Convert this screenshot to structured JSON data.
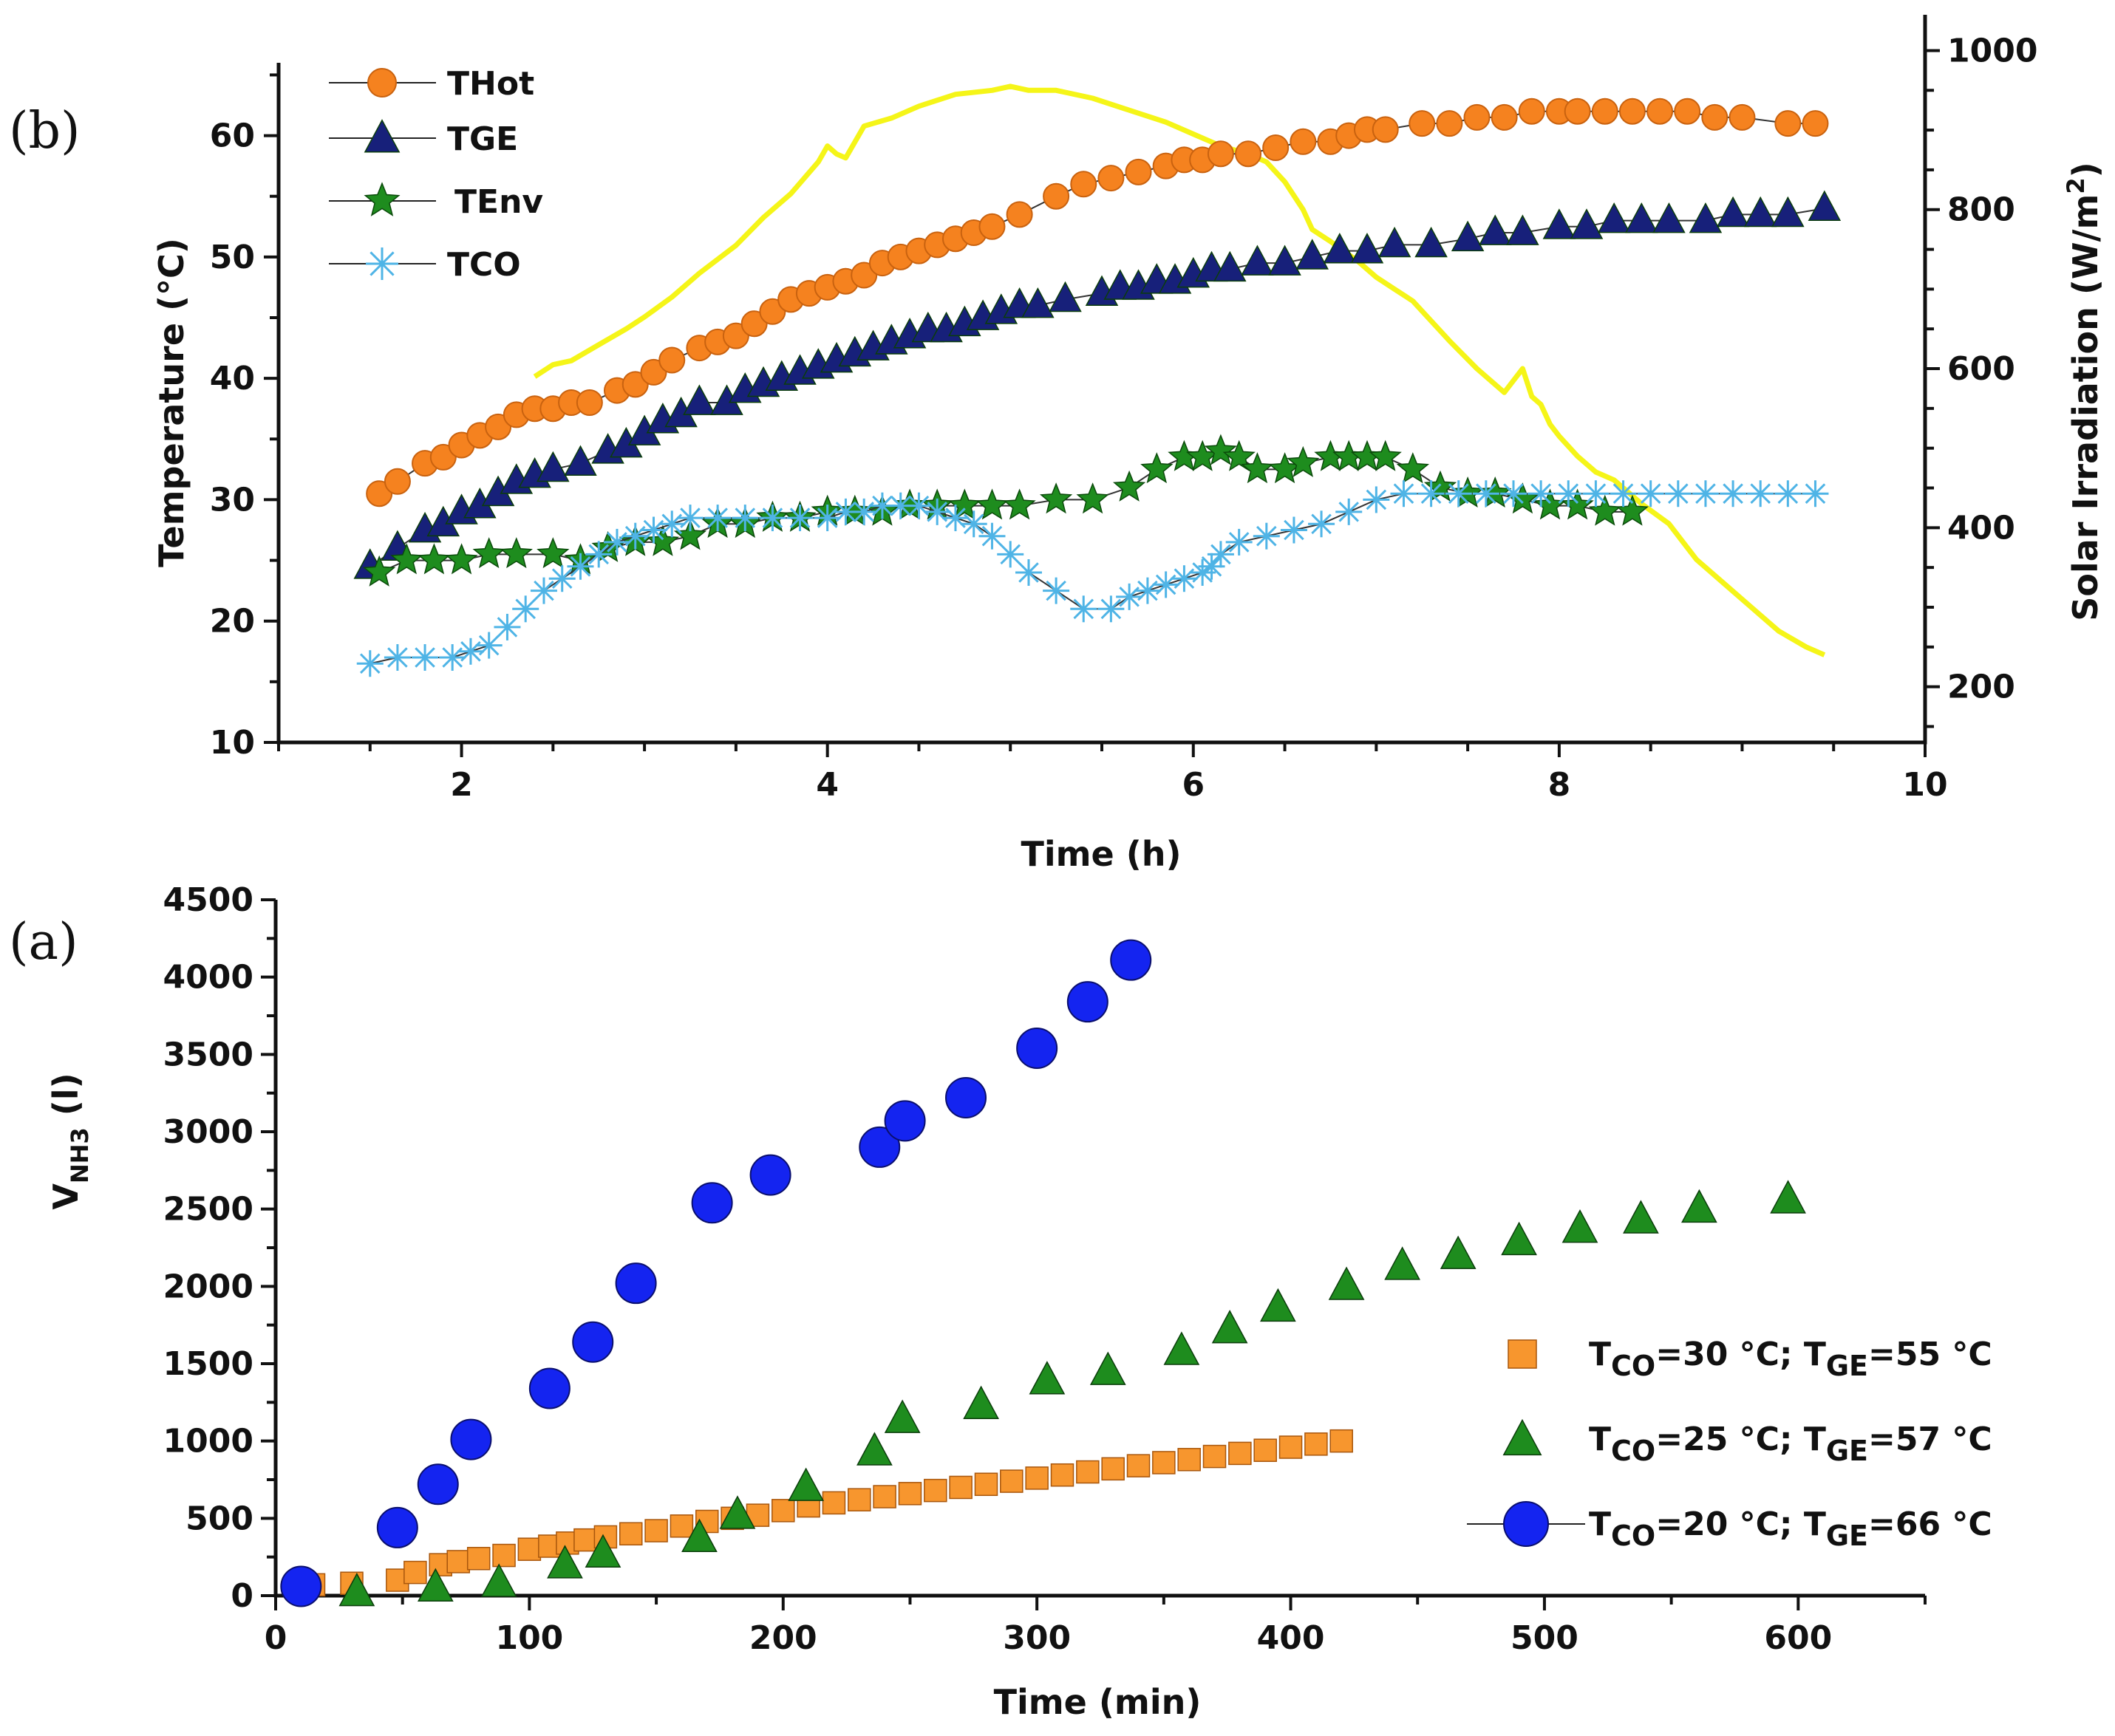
{
  "colors": {
    "orange": "#F5821F",
    "navy": "#17207A",
    "green": "#1E8C1E",
    "lightblue": "#4FB4E6",
    "yellow": "#F5F518",
    "blue": "#1424F0",
    "sq_orange": "#F7962E",
    "tri_green": "#1E8C1E"
  },
  "chart_data": [
    {
      "id": "b",
      "panel_label": "(b)",
      "type": "line",
      "xlabel": "Time (h)",
      "ylabel": "Temperature (°C)",
      "y2label_parts": {
        "main": "Solar Irradiation (W/m",
        "sup": "2",
        "close": ")"
      },
      "xlim": [
        1,
        10
      ],
      "ylim": [
        10,
        66
      ],
      "y2lim": [
        130,
        1045
      ],
      "xticks": [
        2,
        4,
        6,
        8,
        10
      ],
      "yticks": [
        10,
        20,
        30,
        40,
        50,
        60
      ],
      "y2ticks": [
        200,
        400,
        600,
        800,
        1000
      ],
      "legend": [
        {
          "label": "THot",
          "series": "THot"
        },
        {
          "label": "TGE",
          "series": "TGE"
        },
        {
          "label": "TEnv",
          "series": "TEnv"
        },
        {
          "label": "TCO",
          "series": "TCO"
        }
      ],
      "series": [
        {
          "name": "THot",
          "marker": "circle",
          "x": [
            1.55,
            1.65,
            1.8,
            1.9,
            2.0,
            2.1,
            2.2,
            2.3,
            2.4,
            2.5,
            2.6,
            2.7,
            2.85,
            2.95,
            3.05,
            3.15,
            3.3,
            3.4,
            3.5,
            3.6,
            3.7,
            3.8,
            3.9,
            4.0,
            4.1,
            4.2,
            4.3,
            4.4,
            4.5,
            4.6,
            4.7,
            4.8,
            4.9,
            5.05,
            5.25,
            5.4,
            5.55,
            5.7,
            5.85,
            5.95,
            6.05,
            6.15,
            6.3,
            6.45,
            6.6,
            6.75,
            6.85,
            6.95,
            7.05,
            7.25,
            7.4,
            7.55,
            7.7,
            7.85,
            8.0,
            8.1,
            8.25,
            8.4,
            8.55,
            8.7,
            8.85,
            9.0,
            9.25,
            9.4
          ],
          "y": [
            30.5,
            31.5,
            33,
            33.5,
            34.5,
            35.3,
            36,
            37,
            37.5,
            37.5,
            38,
            38,
            39,
            39.5,
            40.5,
            41.5,
            42.5,
            43,
            43.5,
            44.5,
            45.5,
            46.5,
            47,
            47.5,
            48,
            48.5,
            49.5,
            50,
            50.5,
            51,
            51.5,
            52,
            52.5,
            53.5,
            55,
            56,
            56.5,
            57,
            57.5,
            58,
            58,
            58.5,
            58.5,
            59,
            59.5,
            59.5,
            60,
            60.5,
            60.5,
            61,
            61,
            61.5,
            61.5,
            62,
            62,
            62,
            62,
            62,
            62,
            62,
            61.5,
            61.5,
            61,
            61
          ]
        },
        {
          "name": "TGE",
          "marker": "triangle",
          "x": [
            1.5,
            1.65,
            1.8,
            1.9,
            2.0,
            2.1,
            2.2,
            2.3,
            2.4,
            2.5,
            2.65,
            2.8,
            2.9,
            3.0,
            3.1,
            3.2,
            3.3,
            3.45,
            3.55,
            3.65,
            3.75,
            3.85,
            3.95,
            4.05,
            4.15,
            4.25,
            4.35,
            4.45,
            4.55,
            4.65,
            4.75,
            4.85,
            4.95,
            5.05,
            5.15,
            5.3,
            5.5,
            5.6,
            5.7,
            5.8,
            5.9,
            6.0,
            6.1,
            6.2,
            6.35,
            6.5,
            6.65,
            6.8,
            6.95,
            7.1,
            7.3,
            7.5,
            7.65,
            7.8,
            8.0,
            8.15,
            8.3,
            8.45,
            8.6,
            8.8,
            8.95,
            9.1,
            9.25,
            9.45
          ],
          "y": [
            24.5,
            26,
            27.5,
            28,
            29,
            29.5,
            30.5,
            31.5,
            32,
            32.5,
            33,
            34,
            34.5,
            35.5,
            36.5,
            37,
            38,
            38,
            39,
            39.5,
            40,
            40.5,
            41,
            41.5,
            42,
            42.5,
            43,
            43.5,
            44,
            44,
            44.5,
            45,
            45.5,
            46,
            46,
            46.5,
            47,
            47.5,
            47.5,
            48,
            48,
            48.5,
            49,
            49,
            49.5,
            49.5,
            50,
            50.5,
            50.5,
            51,
            51,
            51.5,
            52,
            52,
            52.5,
            52.5,
            53,
            53,
            53,
            53,
            53.5,
            53.5,
            53.5,
            54
          ]
        },
        {
          "name": "TEnv",
          "marker": "star",
          "x": [
            1.55,
            1.7,
            1.85,
            2.0,
            2.15,
            2.3,
            2.5,
            2.65,
            2.8,
            2.95,
            3.1,
            3.25,
            3.4,
            3.55,
            3.7,
            3.85,
            4.0,
            4.15,
            4.3,
            4.45,
            4.6,
            4.75,
            4.9,
            5.05,
            5.25,
            5.45,
            5.65,
            5.8,
            5.95,
            6.05,
            6.15,
            6.25,
            6.35,
            6.5,
            6.6,
            6.75,
            6.85,
            6.95,
            7.05,
            7.2,
            7.35,
            7.5,
            7.65,
            7.8,
            7.95,
            8.1,
            8.25,
            8.4
          ],
          "y": [
            24,
            25,
            25,
            25,
            25.5,
            25.5,
            25.5,
            25,
            26,
            26.5,
            26.5,
            27,
            28,
            28,
            28.5,
            28.5,
            29,
            29,
            29,
            29.5,
            29.5,
            29.5,
            29.5,
            29.5,
            30,
            30,
            31,
            32.5,
            33.5,
            33.5,
            34,
            33.5,
            32.5,
            32.5,
            33,
            33.5,
            33.5,
            33.5,
            33.5,
            32.5,
            31,
            30.5,
            30.5,
            30,
            29.5,
            29.5,
            29,
            29
          ]
        },
        {
          "name": "TCO",
          "marker": "asterisk",
          "x": [
            1.5,
            1.65,
            1.8,
            1.95,
            2.05,
            2.15,
            2.25,
            2.35,
            2.45,
            2.55,
            2.65,
            2.75,
            2.85,
            2.95,
            3.05,
            3.15,
            3.25,
            3.4,
            3.55,
            3.7,
            3.85,
            4.0,
            4.1,
            4.2,
            4.3,
            4.4,
            4.5,
            4.6,
            4.7,
            4.8,
            4.9,
            5.0,
            5.1,
            5.25,
            5.4,
            5.55,
            5.65,
            5.75,
            5.85,
            5.95,
            6.05,
            6.1,
            6.15,
            6.25,
            6.4,
            6.55,
            6.7,
            6.85,
            7.0,
            7.15,
            7.3,
            7.45,
            7.6,
            7.75,
            7.9,
            8.05,
            8.2,
            8.35,
            8.5,
            8.65,
            8.8,
            8.95,
            9.1,
            9.25,
            9.4
          ],
          "y": [
            16.5,
            17,
            17,
            17,
            17.5,
            18,
            19.5,
            21,
            22.5,
            23.5,
            24.5,
            25.5,
            26.5,
            27,
            27.5,
            28,
            28.5,
            28.5,
            28.5,
            28.5,
            28.5,
            28.5,
            29,
            29,
            29.5,
            29.5,
            29.5,
            29,
            28.5,
            28,
            27,
            25.5,
            24,
            22.5,
            21,
            21,
            22,
            22.5,
            23,
            23.5,
            24,
            24.5,
            25.5,
            26.5,
            27,
            27.5,
            28,
            29,
            30,
            30.5,
            30.5,
            30.5,
            30.5,
            30.5,
            30.5,
            30.5,
            30.5,
            30.5,
            30.5,
            30.5,
            30.5,
            30.5,
            30.5,
            30.5,
            30.5
          ]
        },
        {
          "name": "Solar Irradiation",
          "marker": "none",
          "axis": "right",
          "x": [
            2.4,
            2.5,
            2.6,
            2.75,
            2.9,
            3.0,
            3.15,
            3.3,
            3.5,
            3.65,
            3.8,
            3.95,
            4.0,
            4.05,
            4.1,
            4.2,
            4.35,
            4.5,
            4.7,
            4.9,
            5.0,
            5.1,
            5.25,
            5.45,
            5.65,
            5.85,
            6.0,
            6.15,
            6.3,
            6.4,
            6.5,
            6.6,
            6.65,
            6.75,
            6.9,
            7.0,
            7.1,
            7.2,
            7.4,
            7.55,
            7.7,
            7.8,
            7.85,
            7.9,
            7.95,
            8.0,
            8.1,
            8.2,
            8.3,
            8.45,
            8.6,
            8.75,
            8.9,
            9.05,
            9.2,
            9.35,
            9.45
          ],
          "y": [
            590,
            605,
            610,
            630,
            650,
            665,
            690,
            720,
            755,
            790,
            820,
            860,
            880,
            870,
            865,
            905,
            915,
            930,
            945,
            950,
            955,
            950,
            950,
            940,
            925,
            910,
            895,
            880,
            870,
            860,
            835,
            800,
            775,
            760,
            735,
            715,
            700,
            685,
            635,
            600,
            570,
            600,
            565,
            555,
            530,
            515,
            490,
            470,
            460,
            430,
            405,
            360,
            330,
            300,
            270,
            250,
            240
          ]
        }
      ]
    },
    {
      "id": "a",
      "panel_label": "(a)",
      "type": "scatter",
      "xlabel": "Time (min)",
      "ylabel_parts": {
        "main": "V",
        "sub": "NH3",
        "close": " (l)"
      },
      "xlim": [
        0,
        650
      ],
      "ylim": [
        0,
        4500
      ],
      "xticks": [
        0,
        100,
        200,
        300,
        400,
        500,
        600
      ],
      "yticks": [
        0,
        500,
        1000,
        1500,
        2000,
        2500,
        3000,
        3500,
        4000,
        4500
      ],
      "legend": [
        {
          "series": "square",
          "parts": {
            "t": "T",
            "s1": "CO",
            "m": "=30 °C; T",
            "s2": "GE",
            "e": "=55 °C"
          }
        },
        {
          "series": "triangle",
          "parts": {
            "t": "T",
            "s1": "CO",
            "m": "=25 °C; T",
            "s2": "GE",
            "e": "=57 °C"
          }
        },
        {
          "series": "circle",
          "parts": {
            "t": "T",
            "s1": "CO",
            "m": "=20 °C; T",
            "s2": "GE",
            "e": "=66 °C"
          }
        }
      ],
      "series": [
        {
          "name": "TCO=30 °C; TGE=55 °C",
          "marker": "square",
          "x": [
            15,
            30,
            48,
            55,
            65,
            72,
            80,
            90,
            100,
            108,
            115,
            122,
            130,
            140,
            150,
            160,
            170,
            180,
            190,
            200,
            210,
            220,
            230,
            240,
            250,
            260,
            270,
            280,
            290,
            300,
            310,
            320,
            330,
            340,
            350,
            360,
            370,
            380,
            390,
            400,
            410,
            420
          ],
          "y": [
            70,
            80,
            100,
            150,
            200,
            220,
            240,
            260,
            300,
            320,
            340,
            360,
            380,
            400,
            420,
            450,
            480,
            500,
            520,
            550,
            580,
            600,
            620,
            640,
            660,
            680,
            700,
            720,
            740,
            760,
            780,
            800,
            820,
            840,
            860,
            880,
            900,
            920,
            940,
            960,
            980,
            1000
          ]
        },
        {
          "name": "TCO=25 °C; TGE=57 °C",
          "marker": "triangle",
          "x": [
            32,
            63,
            88,
            114,
            129,
            167,
            182,
            209,
            236,
            247,
            278,
            304,
            328,
            357,
            376,
            395,
            422,
            444,
            466,
            490,
            514,
            538,
            561,
            596
          ],
          "y": [
            20,
            50,
            80,
            200,
            270,
            370,
            520,
            700,
            930,
            1140,
            1230,
            1390,
            1450,
            1580,
            1720,
            1860,
            2000,
            2130,
            2200,
            2290,
            2370,
            2430,
            2500,
            2560
          ]
        },
        {
          "name": "TCO=20 °C; TGE=66 °C",
          "marker": "circle",
          "x": [
            10,
            48,
            64,
            77,
            108,
            125,
            142,
            172,
            195,
            238,
            248,
            272,
            300,
            320,
            337
          ],
          "y": [
            60,
            440,
            720,
            1010,
            1340,
            1640,
            2020,
            2540,
            2720,
            2900,
            3070,
            3220,
            3540,
            3840,
            4110
          ]
        }
      ]
    }
  ]
}
